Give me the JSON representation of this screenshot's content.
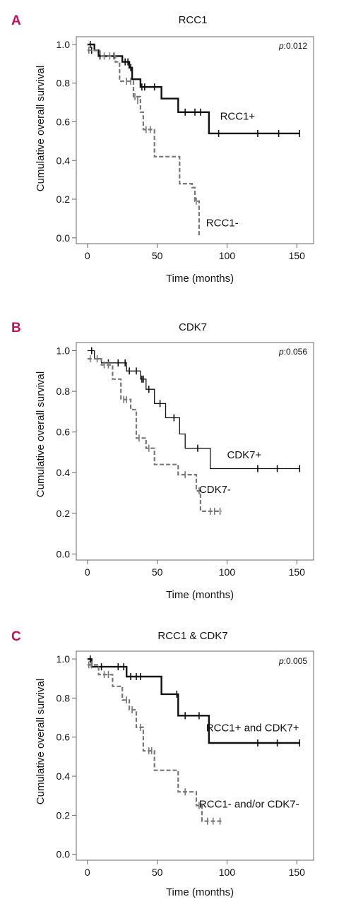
{
  "chart_data": [
    {
      "type": "line",
      "panel_label": "A",
      "title": "RCC1",
      "xlabel": "Time (months)",
      "ylabel": "Cumulative overall survival",
      "pvalue_prefix": "p",
      "pvalue_text": ":0.012",
      "xlim": [
        -8,
        162
      ],
      "ylim": [
        -0.03,
        1.04
      ],
      "xticks": [
        0,
        50,
        100,
        150
      ],
      "yticks": [
        0.0,
        0.2,
        0.4,
        0.6,
        0.8,
        1.0
      ],
      "ytick_labels": [
        "0.0",
        "0.2",
        "0.4",
        "0.6",
        "0.8",
        "1.0"
      ],
      "series": [
        {
          "name": "RCC1+",
          "color": "#111111",
          "dashed": false,
          "width": 2.4,
          "steps": [
            [
              0,
              1.0
            ],
            [
              5,
              0.97
            ],
            [
              8,
              0.94
            ],
            [
              25,
              0.91
            ],
            [
              30,
              0.88
            ],
            [
              32,
              0.82
            ],
            [
              38,
              0.78
            ],
            [
              53,
              0.72
            ],
            [
              65,
              0.65
            ],
            [
              87,
              0.54
            ],
            [
              152,
              0.54
            ]
          ],
          "censor": [
            [
              2,
              1.0
            ],
            [
              3,
              0.97
            ],
            [
              9,
              0.94
            ],
            [
              19,
              0.94
            ],
            [
              27,
              0.91
            ],
            [
              29,
              0.91
            ],
            [
              31,
              0.88
            ],
            [
              39,
              0.78
            ],
            [
              41,
              0.78
            ],
            [
              48,
              0.78
            ],
            [
              70,
              0.65
            ],
            [
              77,
              0.65
            ],
            [
              81,
              0.65
            ],
            [
              94,
              0.54
            ],
            [
              122,
              0.54
            ],
            [
              137,
              0.54
            ],
            [
              152,
              0.54
            ]
          ],
          "label_pos": [
            95,
            0.61
          ]
        },
        {
          "name": "RCC1-",
          "color": "#777777",
          "dashed": true,
          "width": 2.2,
          "steps": [
            [
              0,
              0.97
            ],
            [
              9,
              0.94
            ],
            [
              20,
              0.91
            ],
            [
              23,
              0.81
            ],
            [
              33,
              0.73
            ],
            [
              38,
              0.65
            ],
            [
              40,
              0.56
            ],
            [
              48,
              0.42
            ],
            [
              57,
              0.42
            ],
            [
              66,
              0.28
            ],
            [
              75,
              0.26
            ],
            [
              77,
              0.19
            ],
            [
              80,
              0.01
            ],
            [
              80,
              0.01
            ]
          ],
          "censor": [
            [
              1,
              0.97
            ],
            [
              12,
              0.94
            ],
            [
              16,
              0.94
            ],
            [
              28,
              0.81
            ],
            [
              31,
              0.81
            ],
            [
              34,
              0.73
            ],
            [
              36,
              0.71
            ],
            [
              42,
              0.56
            ],
            [
              45,
              0.56
            ],
            [
              78,
              0.19
            ]
          ],
          "label_pos": [
            85,
            0.06
          ]
        }
      ]
    },
    {
      "type": "line",
      "panel_label": "B",
      "title": "CDK7",
      "xlabel": "Time (months)",
      "ylabel": "Cumulative overall survival",
      "pvalue_prefix": "p",
      "pvalue_text": ":0.056",
      "xlim": [
        -8,
        162
      ],
      "ylim": [
        -0.03,
        1.04
      ],
      "xticks": [
        0,
        50,
        100,
        150
      ],
      "yticks": [
        0.0,
        0.2,
        0.4,
        0.6,
        0.8,
        1.0
      ],
      "ytick_labels": [
        "0.0",
        "0.2",
        "0.4",
        "0.6",
        "0.8",
        "1.0"
      ],
      "series": [
        {
          "name": "CDK7+",
          "color": "#111111",
          "dashed": false,
          "width": 1.3,
          "steps": [
            [
              0,
              1.0
            ],
            [
              5,
              0.96
            ],
            [
              10,
              0.94
            ],
            [
              28,
              0.9
            ],
            [
              38,
              0.86
            ],
            [
              42,
              0.81
            ],
            [
              48,
              0.74
            ],
            [
              56,
              0.67
            ],
            [
              66,
              0.59
            ],
            [
              70,
              0.52
            ],
            [
              88,
              0.42
            ],
            [
              152,
              0.42
            ]
          ],
          "censor": [
            [
              3,
              1.0
            ],
            [
              15,
              0.94
            ],
            [
              22,
              0.94
            ],
            [
              27,
              0.94
            ],
            [
              30,
              0.9
            ],
            [
              35,
              0.9
            ],
            [
              39,
              0.86
            ],
            [
              40,
              0.86
            ],
            [
              44,
              0.81
            ],
            [
              52,
              0.74
            ],
            [
              62,
              0.67
            ],
            [
              79,
              0.52
            ],
            [
              122,
              0.42
            ],
            [
              136,
              0.42
            ],
            [
              152,
              0.42
            ]
          ],
          "label_pos": [
            100,
            0.47
          ]
        },
        {
          "name": "CDK7-",
          "color": "#777777",
          "dashed": true,
          "width": 2.2,
          "steps": [
            [
              0,
              0.96
            ],
            [
              10,
              0.93
            ],
            [
              18,
              0.86
            ],
            [
              24,
              0.76
            ],
            [
              31,
              0.71
            ],
            [
              35,
              0.57
            ],
            [
              42,
              0.52
            ],
            [
              48,
              0.44
            ],
            [
              65,
              0.39
            ],
            [
              78,
              0.31
            ],
            [
              81,
              0.21
            ],
            [
              96,
              0.21
            ]
          ],
          "censor": [
            [
              2,
              0.96
            ],
            [
              7,
              0.96
            ],
            [
              12,
              0.93
            ],
            [
              15,
              0.93
            ],
            [
              26,
              0.76
            ],
            [
              28,
              0.76
            ],
            [
              37,
              0.57
            ],
            [
              44,
              0.52
            ],
            [
              70,
              0.39
            ],
            [
              80,
              0.31
            ],
            [
              88,
              0.21
            ],
            [
              91,
              0.21
            ],
            [
              95,
              0.21
            ]
          ],
          "label_pos": [
            80,
            0.3
          ]
        }
      ]
    },
    {
      "type": "line",
      "panel_label": "C",
      "title": "RCC1 & CDK7",
      "xlabel": "Time (months)",
      "ylabel": "Cumulative overall survival",
      "pvalue_prefix": "p",
      "pvalue_text": ":0.005",
      "xlim": [
        -8,
        162
      ],
      "ylim": [
        -0.03,
        1.04
      ],
      "xticks": [
        0,
        50,
        100,
        150
      ],
      "yticks": [
        0.0,
        0.2,
        0.4,
        0.6,
        0.8,
        1.0
      ],
      "ytick_labels": [
        "0.0",
        "0.2",
        "0.4",
        "0.6",
        "0.8",
        "1.0"
      ],
      "series": [
        {
          "name": "RCC1+ and CDK7+",
          "color": "#111111",
          "dashed": false,
          "width": 2.4,
          "steps": [
            [
              0,
              1.0
            ],
            [
              3,
              0.96
            ],
            [
              28,
              0.91
            ],
            [
              53,
              0.82
            ],
            [
              65,
              0.71
            ],
            [
              87,
              0.57
            ],
            [
              152,
              0.57
            ]
          ],
          "censor": [
            [
              2,
              1.0
            ],
            [
              10,
              0.96
            ],
            [
              22,
              0.96
            ],
            [
              26,
              0.96
            ],
            [
              31,
              0.91
            ],
            [
              35,
              0.91
            ],
            [
              38,
              0.91
            ],
            [
              64,
              0.82
            ],
            [
              70,
              0.71
            ],
            [
              80,
              0.71
            ],
            [
              122,
              0.57
            ],
            [
              136,
              0.57
            ],
            [
              152,
              0.57
            ]
          ],
          "label_pos": [
            85,
            0.63
          ]
        },
        {
          "name": "RCC1- and/or CDK7-",
          "color": "#777777",
          "dashed": true,
          "width": 2.2,
          "steps": [
            [
              0,
              0.97
            ],
            [
              8,
              0.92
            ],
            [
              18,
              0.86
            ],
            [
              25,
              0.79
            ],
            [
              30,
              0.74
            ],
            [
              35,
              0.65
            ],
            [
              40,
              0.53
            ],
            [
              48,
              0.43
            ],
            [
              65,
              0.32
            ],
            [
              78,
              0.25
            ],
            [
              82,
              0.17
            ],
            [
              96,
              0.17
            ]
          ],
          "censor": [
            [
              1,
              0.97
            ],
            [
              3,
              0.97
            ],
            [
              12,
              0.92
            ],
            [
              15,
              0.92
            ],
            [
              28,
              0.79
            ],
            [
              32,
              0.74
            ],
            [
              38,
              0.65
            ],
            [
              44,
              0.53
            ],
            [
              46,
              0.53
            ],
            [
              70,
              0.32
            ],
            [
              80,
              0.25
            ],
            [
              86,
              0.17
            ],
            [
              90,
              0.17
            ],
            [
              95,
              0.17
            ]
          ],
          "label_pos": [
            80,
            0.24
          ]
        }
      ]
    }
  ]
}
